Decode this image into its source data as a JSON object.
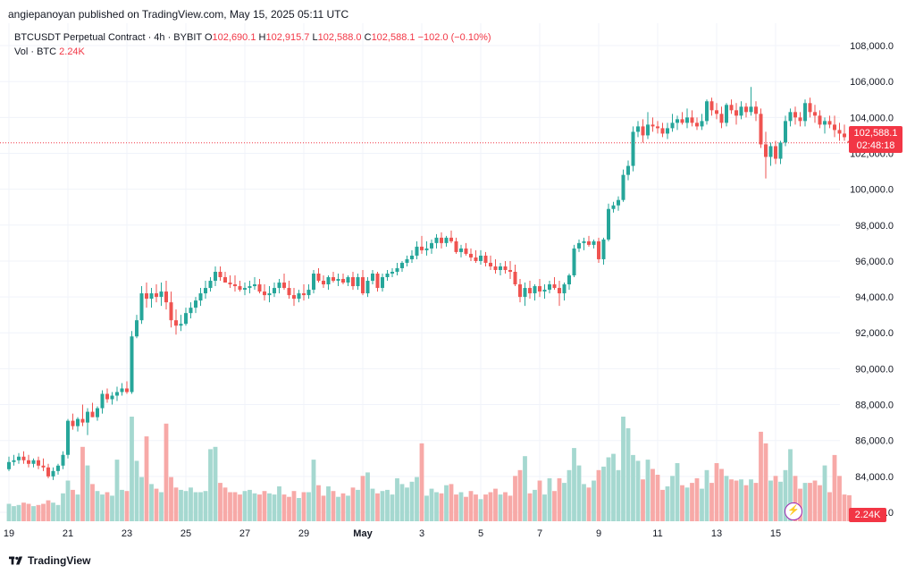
{
  "header": {
    "publisher_text": "angiepanoyan published on TradingView.com, May 15, 2025 05:11 UTC"
  },
  "legend": {
    "symbol": "BTCUSDT Perpetual Contract · 4h · BYBIT",
    "o_label": "O",
    "o_value": "102,690.1",
    "h_label": "H",
    "h_value": "102,915.7",
    "l_label": "L",
    "l_value": "102,588.0",
    "c_label": "C",
    "c_value": "102,588.1",
    "change": "−102.0 (−0.10%)",
    "vol_label": "Vol · BTC",
    "vol_value": "2.24K"
  },
  "price_tag": {
    "price": "102,588.1",
    "countdown": "02:48:18"
  },
  "volume_tag": "2.24K",
  "footer": {
    "brand": "TradingView"
  },
  "colors": {
    "up": "#26a69a",
    "down": "#ef5350",
    "vol_up": "#a5d8d0",
    "vol_down": "#f7a9a7",
    "grid": "#f0f3fa",
    "last_price_line": "#f23645"
  },
  "chart_data": {
    "type": "candlestick",
    "title": "BTCUSDT Perpetual Contract · 4h · BYBIT",
    "ylim": [
      81800,
      108800
    ],
    "y_ticks": [
      108000,
      106000,
      104000,
      102000,
      100000,
      98000,
      96000,
      94000,
      92000,
      90000,
      88000,
      86000,
      84000,
      82000
    ],
    "y_tick_labels": [
      "108,000.0",
      "106,000.0",
      "104,000.0",
      "102,000.0",
      "100,000.0",
      "98,000.0",
      "96,000.0",
      "94,000.0",
      "92,000.0",
      "90,000.0",
      "88,000.0",
      "86,000.0",
      "84,000.0",
      "82,000.0"
    ],
    "x_tick_labels": [
      {
        "label": "19",
        "bar": 0
      },
      {
        "label": "21",
        "bar": 12
      },
      {
        "label": "23",
        "bar": 24
      },
      {
        "label": "25",
        "bar": 36
      },
      {
        "label": "27",
        "bar": 48
      },
      {
        "label": "29",
        "bar": 60
      },
      {
        "label": "May",
        "bar": 72
      },
      {
        "label": "3",
        "bar": 84
      },
      {
        "label": "5",
        "bar": 96
      },
      {
        "label": "7",
        "bar": 108
      },
      {
        "label": "9",
        "bar": 120
      },
      {
        "label": "11",
        "bar": 132
      },
      {
        "label": "13",
        "bar": 144
      },
      {
        "label": "15",
        "bar": 156
      }
    ],
    "last_price": 102588.1,
    "vol_max": 9000,
    "candles": [
      [
        84400,
        85100,
        84300,
        84800,
        1500
      ],
      [
        84800,
        85200,
        84600,
        84900,
        1300
      ],
      [
        84900,
        85300,
        84700,
        85100,
        1400
      ],
      [
        85100,
        85400,
        84700,
        84900,
        1600
      ],
      [
        84900,
        85200,
        84500,
        84700,
        1500
      ],
      [
        84700,
        85000,
        84500,
        84900,
        1300
      ],
      [
        84900,
        85100,
        84400,
        84600,
        1400
      ],
      [
        84600,
        85000,
        84300,
        84500,
        1500
      ],
      [
        84500,
        84700,
        83900,
        84000,
        1800
      ],
      [
        84000,
        84500,
        83800,
        84300,
        1600
      ],
      [
        84300,
        84700,
        84100,
        84600,
        1400
      ],
      [
        84600,
        85400,
        84400,
        85200,
        2400
      ],
      [
        85200,
        87200,
        85000,
        87100,
        3500
      ],
      [
        87100,
        87500,
        86600,
        86800,
        2700
      ],
      [
        86800,
        87300,
        86500,
        87200,
        2300
      ],
      [
        87200,
        88000,
        86800,
        87000,
        6400
      ],
      [
        87000,
        87800,
        86300,
        87600,
        4800
      ],
      [
        87600,
        88100,
        87300,
        87300,
        3200
      ],
      [
        87300,
        87900,
        87100,
        87800,
        2600
      ],
      [
        87800,
        88800,
        87500,
        88600,
        2300
      ],
      [
        88600,
        88900,
        88100,
        88300,
        2500
      ],
      [
        88300,
        88700,
        88000,
        88500,
        2200
      ],
      [
        88500,
        89000,
        88200,
        88700,
        5300
      ],
      [
        88700,
        89200,
        88500,
        88900,
        2700
      ],
      [
        88900,
        89300,
        88600,
        88700,
        2600
      ],
      [
        88700,
        92100,
        88600,
        91800,
        9000
      ],
      [
        91800,
        93000,
        91700,
        92700,
        5200
      ],
      [
        92700,
        94600,
        92500,
        94200,
        3800
      ],
      [
        94200,
        94800,
        93400,
        93900,
        7300
      ],
      [
        93900,
        94500,
        93400,
        94200,
        3200
      ],
      [
        94200,
        94700,
        93700,
        94000,
        2800
      ],
      [
        94000,
        94800,
        93500,
        94300,
        2500
      ],
      [
        94300,
        94900,
        93300,
        93700,
        8400
      ],
      [
        93700,
        94300,
        92300,
        92700,
        3800
      ],
      [
        92700,
        93300,
        91900,
        92400,
        2900
      ],
      [
        92400,
        93000,
        92100,
        92500,
        2700
      ],
      [
        92500,
        93400,
        92400,
        93100,
        2600
      ],
      [
        93100,
        93700,
        92800,
        93400,
        2900
      ],
      [
        93400,
        94000,
        93100,
        93800,
        2500
      ],
      [
        93800,
        94500,
        93500,
        94200,
        2500
      ],
      [
        94200,
        94900,
        93900,
        94500,
        2600
      ],
      [
        94500,
        95100,
        94300,
        94900,
        6200
      ],
      [
        94900,
        95700,
        94600,
        95400,
        6400
      ],
      [
        95400,
        95700,
        94900,
        95100,
        3300
      ],
      [
        95100,
        95400,
        94800,
        94800,
        2900
      ],
      [
        94800,
        95200,
        94500,
        94700,
        2500
      ],
      [
        94700,
        95200,
        94300,
        94600,
        2500
      ],
      [
        94600,
        94900,
        94300,
        94400,
        2300
      ],
      [
        94400,
        94800,
        94100,
        94500,
        2600
      ],
      [
        94500,
        94900,
        94200,
        94600,
        2700
      ],
      [
        94600,
        95100,
        94400,
        94700,
        2400
      ],
      [
        94700,
        95000,
        94200,
        94300,
        2300
      ],
      [
        94300,
        94700,
        93800,
        94100,
        2600
      ],
      [
        94100,
        94600,
        93700,
        94200,
        2400
      ],
      [
        94200,
        94800,
        94000,
        94500,
        2300
      ],
      [
        94500,
        95000,
        94200,
        94800,
        3000
      ],
      [
        94800,
        95300,
        94400,
        94500,
        2300
      ],
      [
        94500,
        94900,
        93900,
        94100,
        2100
      ],
      [
        94100,
        94500,
        93500,
        93900,
        2600
      ],
      [
        93900,
        94400,
        93700,
        94200,
        2000
      ],
      [
        94200,
        94700,
        93800,
        94100,
        2500
      ],
      [
        94100,
        94700,
        93900,
        94400,
        2500
      ],
      [
        94400,
        95500,
        94200,
        95300,
        5300
      ],
      [
        95300,
        95600,
        94800,
        94900,
        3100
      ],
      [
        94900,
        95200,
        94500,
        94700,
        2200
      ],
      [
        94700,
        95200,
        94400,
        95100,
        3000
      ],
      [
        95100,
        95400,
        94800,
        94900,
        2600
      ],
      [
        94900,
        95300,
        94600,
        95000,
        2100
      ],
      [
        95000,
        95300,
        94700,
        94800,
        2400
      ],
      [
        94800,
        95200,
        94600,
        95100,
        2200
      ],
      [
        95100,
        95400,
        94400,
        94600,
        2900
      ],
      [
        94600,
        95300,
        94400,
        95100,
        2700
      ],
      [
        95100,
        95500,
        94100,
        94200,
        3900
      ],
      [
        94200,
        95100,
        94000,
        94900,
        4200
      ],
      [
        94900,
        95500,
        94700,
        95300,
        2800
      ],
      [
        95300,
        95400,
        94300,
        94500,
        2400
      ],
      [
        94500,
        95300,
        94300,
        95100,
        2600
      ],
      [
        95100,
        95500,
        94900,
        95300,
        2700
      ],
      [
        95300,
        95600,
        95100,
        95400,
        2300
      ],
      [
        95400,
        95900,
        95200,
        95600,
        3700
      ],
      [
        95600,
        96000,
        95400,
        95900,
        3200
      ],
      [
        95900,
        96300,
        95700,
        96100,
        2900
      ],
      [
        96100,
        96600,
        95900,
        96300,
        3400
      ],
      [
        96300,
        97100,
        96100,
        96800,
        3800
      ],
      [
        96800,
        97400,
        96400,
        96600,
        6700
      ],
      [
        96600,
        97100,
        96300,
        96700,
        2200
      ],
      [
        96700,
        97200,
        96400,
        97000,
        2800
      ],
      [
        97000,
        97500,
        96700,
        97300,
        2500
      ],
      [
        97300,
        97600,
        96700,
        97000,
        2400
      ],
      [
        97000,
        97400,
        96800,
        97300,
        3100
      ],
      [
        97300,
        97700,
        97000,
        97100,
        3200
      ],
      [
        97100,
        97300,
        96400,
        96500,
        2300
      ],
      [
        96500,
        96900,
        96200,
        96700,
        2500
      ],
      [
        96700,
        97000,
        96300,
        96400,
        2100
      ],
      [
        96400,
        96700,
        96000,
        96200,
        2600
      ],
      [
        96200,
        96600,
        95900,
        96000,
        2300
      ],
      [
        96000,
        96600,
        95800,
        96300,
        1900
      ],
      [
        96300,
        96500,
        95700,
        95900,
        2300
      ],
      [
        95900,
        96300,
        95500,
        95700,
        2500
      ],
      [
        95700,
        96100,
        95300,
        95500,
        2800
      ],
      [
        95500,
        95900,
        95200,
        95700,
        2300
      ],
      [
        95700,
        96000,
        95300,
        95500,
        2500
      ],
      [
        95500,
        96000,
        95000,
        95400,
        2200
      ],
      [
        95400,
        95800,
        94600,
        94700,
        3900
      ],
      [
        94700,
        95000,
        93700,
        94000,
        4400
      ],
      [
        94000,
        94800,
        93500,
        94500,
        5600
      ],
      [
        94500,
        94900,
        93900,
        94200,
        2400
      ],
      [
        94200,
        94700,
        93800,
        94600,
        2700
      ],
      [
        94600,
        95000,
        94000,
        94300,
        3500
      ],
      [
        94300,
        94700,
        93900,
        94400,
        2300
      ],
      [
        94400,
        94900,
        94200,
        94700,
        3700
      ],
      [
        94700,
        95100,
        94400,
        94500,
        2600
      ],
      [
        94500,
        94900,
        93500,
        94200,
        3700
      ],
      [
        94200,
        94800,
        93800,
        94700,
        3300
      ],
      [
        94700,
        95300,
        94400,
        95200,
        4400
      ],
      [
        95200,
        96900,
        95100,
        96700,
        6300
      ],
      [
        96700,
        97200,
        96500,
        97000,
        4800
      ],
      [
        97000,
        97300,
        96600,
        97100,
        3200
      ],
      [
        97100,
        97400,
        96800,
        96900,
        2900
      ],
      [
        96900,
        97200,
        96700,
        97100,
        3500
      ],
      [
        97100,
        97300,
        95900,
        96100,
        4400
      ],
      [
        96100,
        97300,
        95800,
        97200,
        4700
      ],
      [
        97200,
        99200,
        97100,
        98900,
        5500
      ],
      [
        98900,
        99300,
        98700,
        99100,
        5800
      ],
      [
        99100,
        99600,
        98800,
        99400,
        4400
      ],
      [
        99400,
        101100,
        99300,
        100800,
        9000
      ],
      [
        100800,
        101600,
        100500,
        101300,
        8000
      ],
      [
        101300,
        103500,
        101000,
        103200,
        5700
      ],
      [
        103200,
        103800,
        102900,
        103500,
        5200
      ],
      [
        103500,
        103900,
        102600,
        103000,
        3600
      ],
      [
        103000,
        104300,
        102800,
        103600,
        5300
      ],
      [
        103600,
        104000,
        103200,
        103500,
        4500
      ],
      [
        103500,
        103800,
        103100,
        103400,
        4000
      ],
      [
        103400,
        103700,
        102900,
        103100,
        2700
      ],
      [
        103100,
        103700,
        102800,
        103400,
        3000
      ],
      [
        103400,
        104200,
        103200,
        103700,
        3900
      ],
      [
        103700,
        104100,
        103300,
        103900,
        5000
      ],
      [
        103900,
        104300,
        103600,
        103700,
        3100
      ],
      [
        103700,
        104500,
        103400,
        104000,
        2900
      ],
      [
        104000,
        104400,
        103500,
        103700,
        3300
      ],
      [
        103700,
        104000,
        103300,
        103500,
        3700
      ],
      [
        103500,
        104200,
        103300,
        103800,
        2800
      ],
      [
        103800,
        105000,
        103600,
        104900,
        4400
      ],
      [
        104900,
        105100,
        104100,
        104400,
        3300
      ],
      [
        104400,
        104800,
        103900,
        104200,
        5000
      ],
      [
        104200,
        104600,
        103400,
        103700,
        4500
      ],
      [
        103700,
        104800,
        103500,
        104700,
        3900
      ],
      [
        104700,
        105000,
        104200,
        104400,
        3600
      ],
      [
        104400,
        104800,
        103600,
        104100,
        3500
      ],
      [
        104100,
        104900,
        103900,
        104600,
        3600
      ],
      [
        104600,
        104800,
        104000,
        104300,
        3100
      ],
      [
        104300,
        105700,
        104100,
        104600,
        3600
      ],
      [
        104600,
        104900,
        103800,
        104200,
        3300
      ],
      [
        104200,
        104500,
        102300,
        102500,
        7700
      ],
      [
        102500,
        103200,
        100600,
        101800,
        6700
      ],
      [
        101800,
        102600,
        101300,
        102400,
        3500
      ],
      [
        102400,
        102700,
        101400,
        101700,
        3900
      ],
      [
        101700,
        102700,
        101400,
        102600,
        3400
      ],
      [
        102600,
        104100,
        102400,
        103800,
        4400
      ],
      [
        103800,
        104500,
        103500,
        104300,
        6200
      ],
      [
        104300,
        104600,
        103600,
        104000,
        3900
      ],
      [
        104000,
        104300,
        103500,
        103800,
        2800
      ],
      [
        103800,
        105000,
        103500,
        104800,
        3300
      ],
      [
        104800,
        105100,
        104000,
        104300,
        3300
      ],
      [
        104300,
        104700,
        103700,
        104100,
        3500
      ],
      [
        104100,
        104400,
        103400,
        103600,
        3100
      ],
      [
        103600,
        104000,
        103100,
        103800,
        4800
      ],
      [
        103800,
        104100,
        103400,
        103600,
        2500
      ],
      [
        103600,
        104100,
        102900,
        103300,
        5700
      ],
      [
        103300,
        103700,
        102700,
        103100,
        3900
      ],
      [
        103100,
        103600,
        102700,
        102900,
        2300
      ],
      [
        102690.1,
        102915.7,
        102588.0,
        102588.1,
        2240
      ]
    ]
  }
}
